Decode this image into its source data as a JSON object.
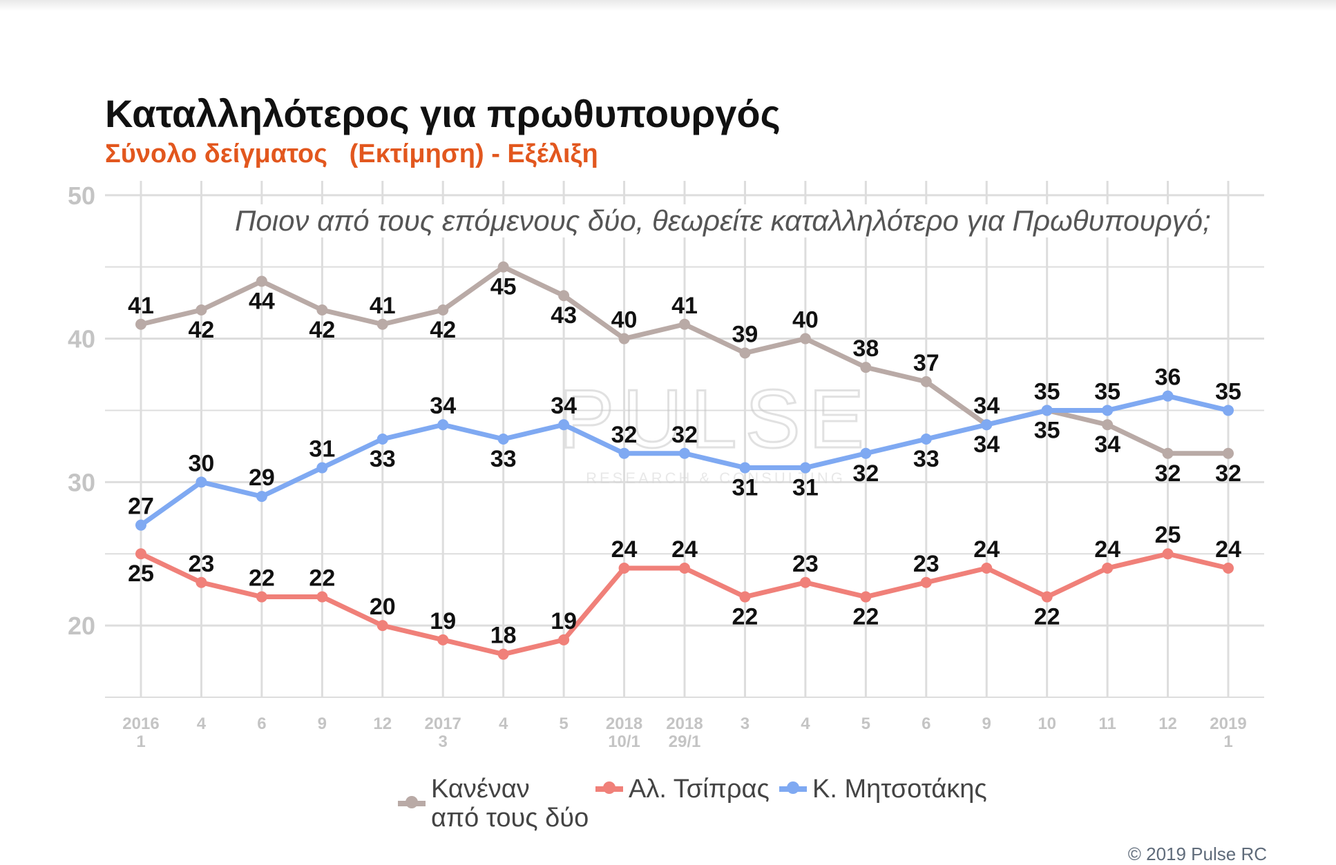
{
  "header": {
    "title": "Καταλληλότερος για πρωθυπουργός",
    "subtitle": "Σύνολο δείγματος   (Εκτίμηση) - Εξέλιξη",
    "question": "Ποιον από τους επόμενους δύο, θεωρείτε καταλληλότερο για Πρωθυπουργό;"
  },
  "watermark": {
    "text": "PULSE",
    "tagline": "RESEARCH & CONSULTING"
  },
  "copyright": "© 2019 Pulse RC",
  "colors": {
    "title": "#111111",
    "subtitle": "#e2571e",
    "grid": "#dddddd",
    "axis_text": "#c4c4c4",
    "label_text": "#111111"
  },
  "chart_data": {
    "type": "line",
    "categories": [
      [
        "2016",
        "1"
      ],
      [
        "4"
      ],
      [
        "6"
      ],
      [
        "9"
      ],
      [
        "12"
      ],
      [
        "2017",
        "3"
      ],
      [
        "4"
      ],
      [
        "5"
      ],
      [
        "2018",
        "10/1"
      ],
      [
        "2018",
        "29/1"
      ],
      [
        "3"
      ],
      [
        "4"
      ],
      [
        "5"
      ],
      [
        "6"
      ],
      [
        "9"
      ],
      [
        "10"
      ],
      [
        "11"
      ],
      [
        "12"
      ],
      [
        "2019",
        "1"
      ]
    ],
    "ylim": [
      15,
      51
    ],
    "yticks": [
      20,
      30,
      40,
      50
    ],
    "grid": true,
    "legend_position": "bottom",
    "series": [
      {
        "name": "Κανέναν\nαπό τους δύο",
        "color": "#b9aaa6",
        "values": [
          41,
          42,
          44,
          42,
          41,
          42,
          45,
          43,
          40,
          41,
          39,
          40,
          38,
          37,
          34,
          35,
          34,
          32,
          32
        ],
        "label_pos": [
          "above",
          "below",
          "below",
          "below",
          "above",
          "below",
          "below",
          "below",
          "above",
          "above",
          "above",
          "above",
          "above",
          "above",
          "below",
          "below",
          "below",
          "below",
          "below"
        ]
      },
      {
        "name": "Αλ. Τσίπρας",
        "color": "#f08079",
        "values": [
          25,
          23,
          22,
          22,
          20,
          19,
          18,
          19,
          24,
          24,
          22,
          23,
          22,
          23,
          24,
          22,
          24,
          25,
          24
        ],
        "label_pos": [
          "below",
          "above",
          "above",
          "above",
          "above",
          "above",
          "above",
          "above",
          "above",
          "above",
          "below",
          "above",
          "below",
          "above",
          "above",
          "below",
          "above",
          "above",
          "above"
        ]
      },
      {
        "name": "Κ. Μητσοτάκης",
        "color": "#7fa9f2",
        "values": [
          27,
          30,
          29,
          31,
          33,
          34,
          33,
          34,
          32,
          32,
          31,
          31,
          32,
          33,
          34,
          35,
          35,
          36,
          35
        ],
        "label_pos": [
          "above",
          "above",
          "above",
          "above",
          "below",
          "above",
          "below",
          "above",
          "above",
          "above",
          "below",
          "below",
          "below",
          "below",
          "above",
          "above",
          "above",
          "above",
          "above"
        ]
      }
    ]
  }
}
